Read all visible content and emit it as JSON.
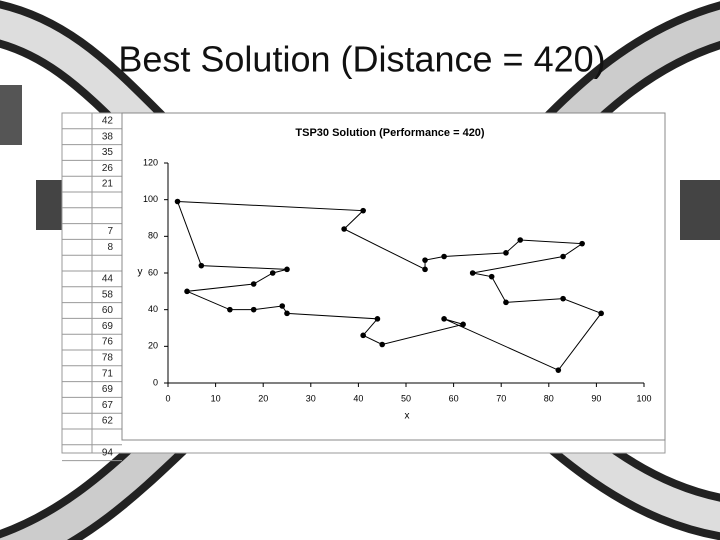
{
  "slide": {
    "title": "Best Solution (Distance = 420)",
    "sheet_cells": [
      "42",
      "38",
      "35",
      "26",
      "21",
      null,
      null,
      "7",
      "8",
      null,
      "44",
      "58",
      "60",
      "69",
      "76",
      "78",
      "71",
      "69",
      "67",
      "62",
      null,
      "94"
    ]
  },
  "chart_data": {
    "type": "scatter",
    "title": "TSP30 Solution (Performance = 420)",
    "x_label": "x",
    "y_label": "y",
    "x": [
      2,
      41,
      37,
      54,
      54,
      58,
      71,
      74,
      87,
      83,
      64,
      68,
      71,
      83,
      91,
      82,
      58,
      62,
      45,
      41,
      44,
      25,
      24,
      18,
      13,
      4,
      18,
      22,
      25,
      7
    ],
    "series": [
      {
        "color": "#000000",
        "values": [
          99,
          94,
          84,
          62,
          67,
          69,
          71,
          78,
          76,
          69,
          60,
          58,
          44,
          46,
          38,
          7,
          35,
          32,
          21,
          26,
          35,
          38,
          42,
          40,
          40,
          50,
          54,
          60,
          62,
          64
        ]
      }
    ],
    "closed_tour": true,
    "xlim": [
      0,
      100
    ],
    "xticks": [
      0,
      10,
      20,
      30,
      40,
      50,
      60,
      70,
      80,
      90,
      100
    ],
    "ylim": [
      0,
      120
    ],
    "yticks": [
      0,
      20,
      40,
      60,
      80,
      100,
      120
    ]
  }
}
